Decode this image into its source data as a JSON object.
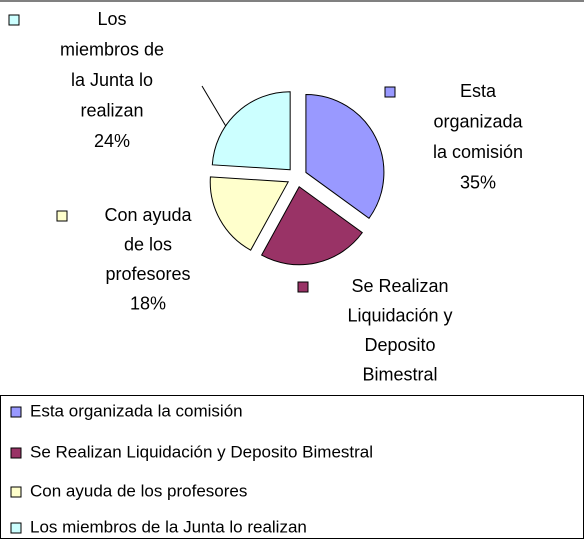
{
  "chart_data": {
    "type": "pie",
    "categories": [
      "Esta organizada la comisión",
      "Se Realizan Liquidación y Deposito Bimestral",
      "Con ayuda de los profesores",
      "Los miembros de la Junta lo realizan"
    ],
    "values": [
      35,
      23,
      18,
      24
    ],
    "value_labels": [
      "35%",
      null,
      "18%",
      "24%"
    ],
    "colors": [
      "#9999ff",
      "#993366",
      "#ffffcc",
      "#ccffff"
    ],
    "legend": "bottom"
  }
}
